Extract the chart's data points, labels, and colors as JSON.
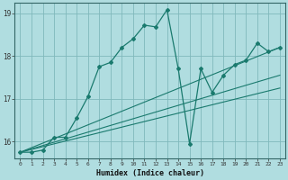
{
  "title": "",
  "xlabel": "Humidex (Indice chaleur)",
  "xlim": [
    -0.5,
    23.5
  ],
  "ylim": [
    15.6,
    19.25
  ],
  "yticks": [
    16,
    17,
    18,
    19
  ],
  "xticks": [
    0,
    1,
    2,
    3,
    4,
    5,
    6,
    7,
    8,
    9,
    10,
    11,
    12,
    13,
    14,
    15,
    16,
    17,
    18,
    19,
    20,
    21,
    22,
    23
  ],
  "bg_color": "#b0dde0",
  "line_color": "#1a7a6e",
  "grid_color": "#80b8bc",
  "series": [
    [
      0,
      15.75
    ],
    [
      1,
      15.75
    ],
    [
      2,
      15.8
    ],
    [
      3,
      16.1
    ],
    [
      4,
      16.1
    ],
    [
      5,
      16.55
    ],
    [
      6,
      17.05
    ],
    [
      7,
      17.75
    ],
    [
      8,
      17.85
    ],
    [
      9,
      18.2
    ],
    [
      10,
      18.4
    ],
    [
      11,
      18.72
    ],
    [
      12,
      18.68
    ],
    [
      13,
      19.08
    ],
    [
      14,
      17.7
    ],
    [
      15,
      15.95
    ],
    [
      16,
      17.7
    ],
    [
      17,
      17.15
    ],
    [
      18,
      17.55
    ],
    [
      19,
      17.8
    ],
    [
      20,
      17.9
    ],
    [
      21,
      18.3
    ],
    [
      22,
      18.1
    ],
    [
      23,
      18.2
    ]
  ],
  "linear1": [
    [
      0,
      15.75
    ],
    [
      23,
      18.2
    ]
  ],
  "linear2": [
    [
      0,
      15.75
    ],
    [
      23,
      17.55
    ]
  ],
  "linear3": [
    [
      0,
      15.75
    ],
    [
      23,
      17.25
    ]
  ]
}
